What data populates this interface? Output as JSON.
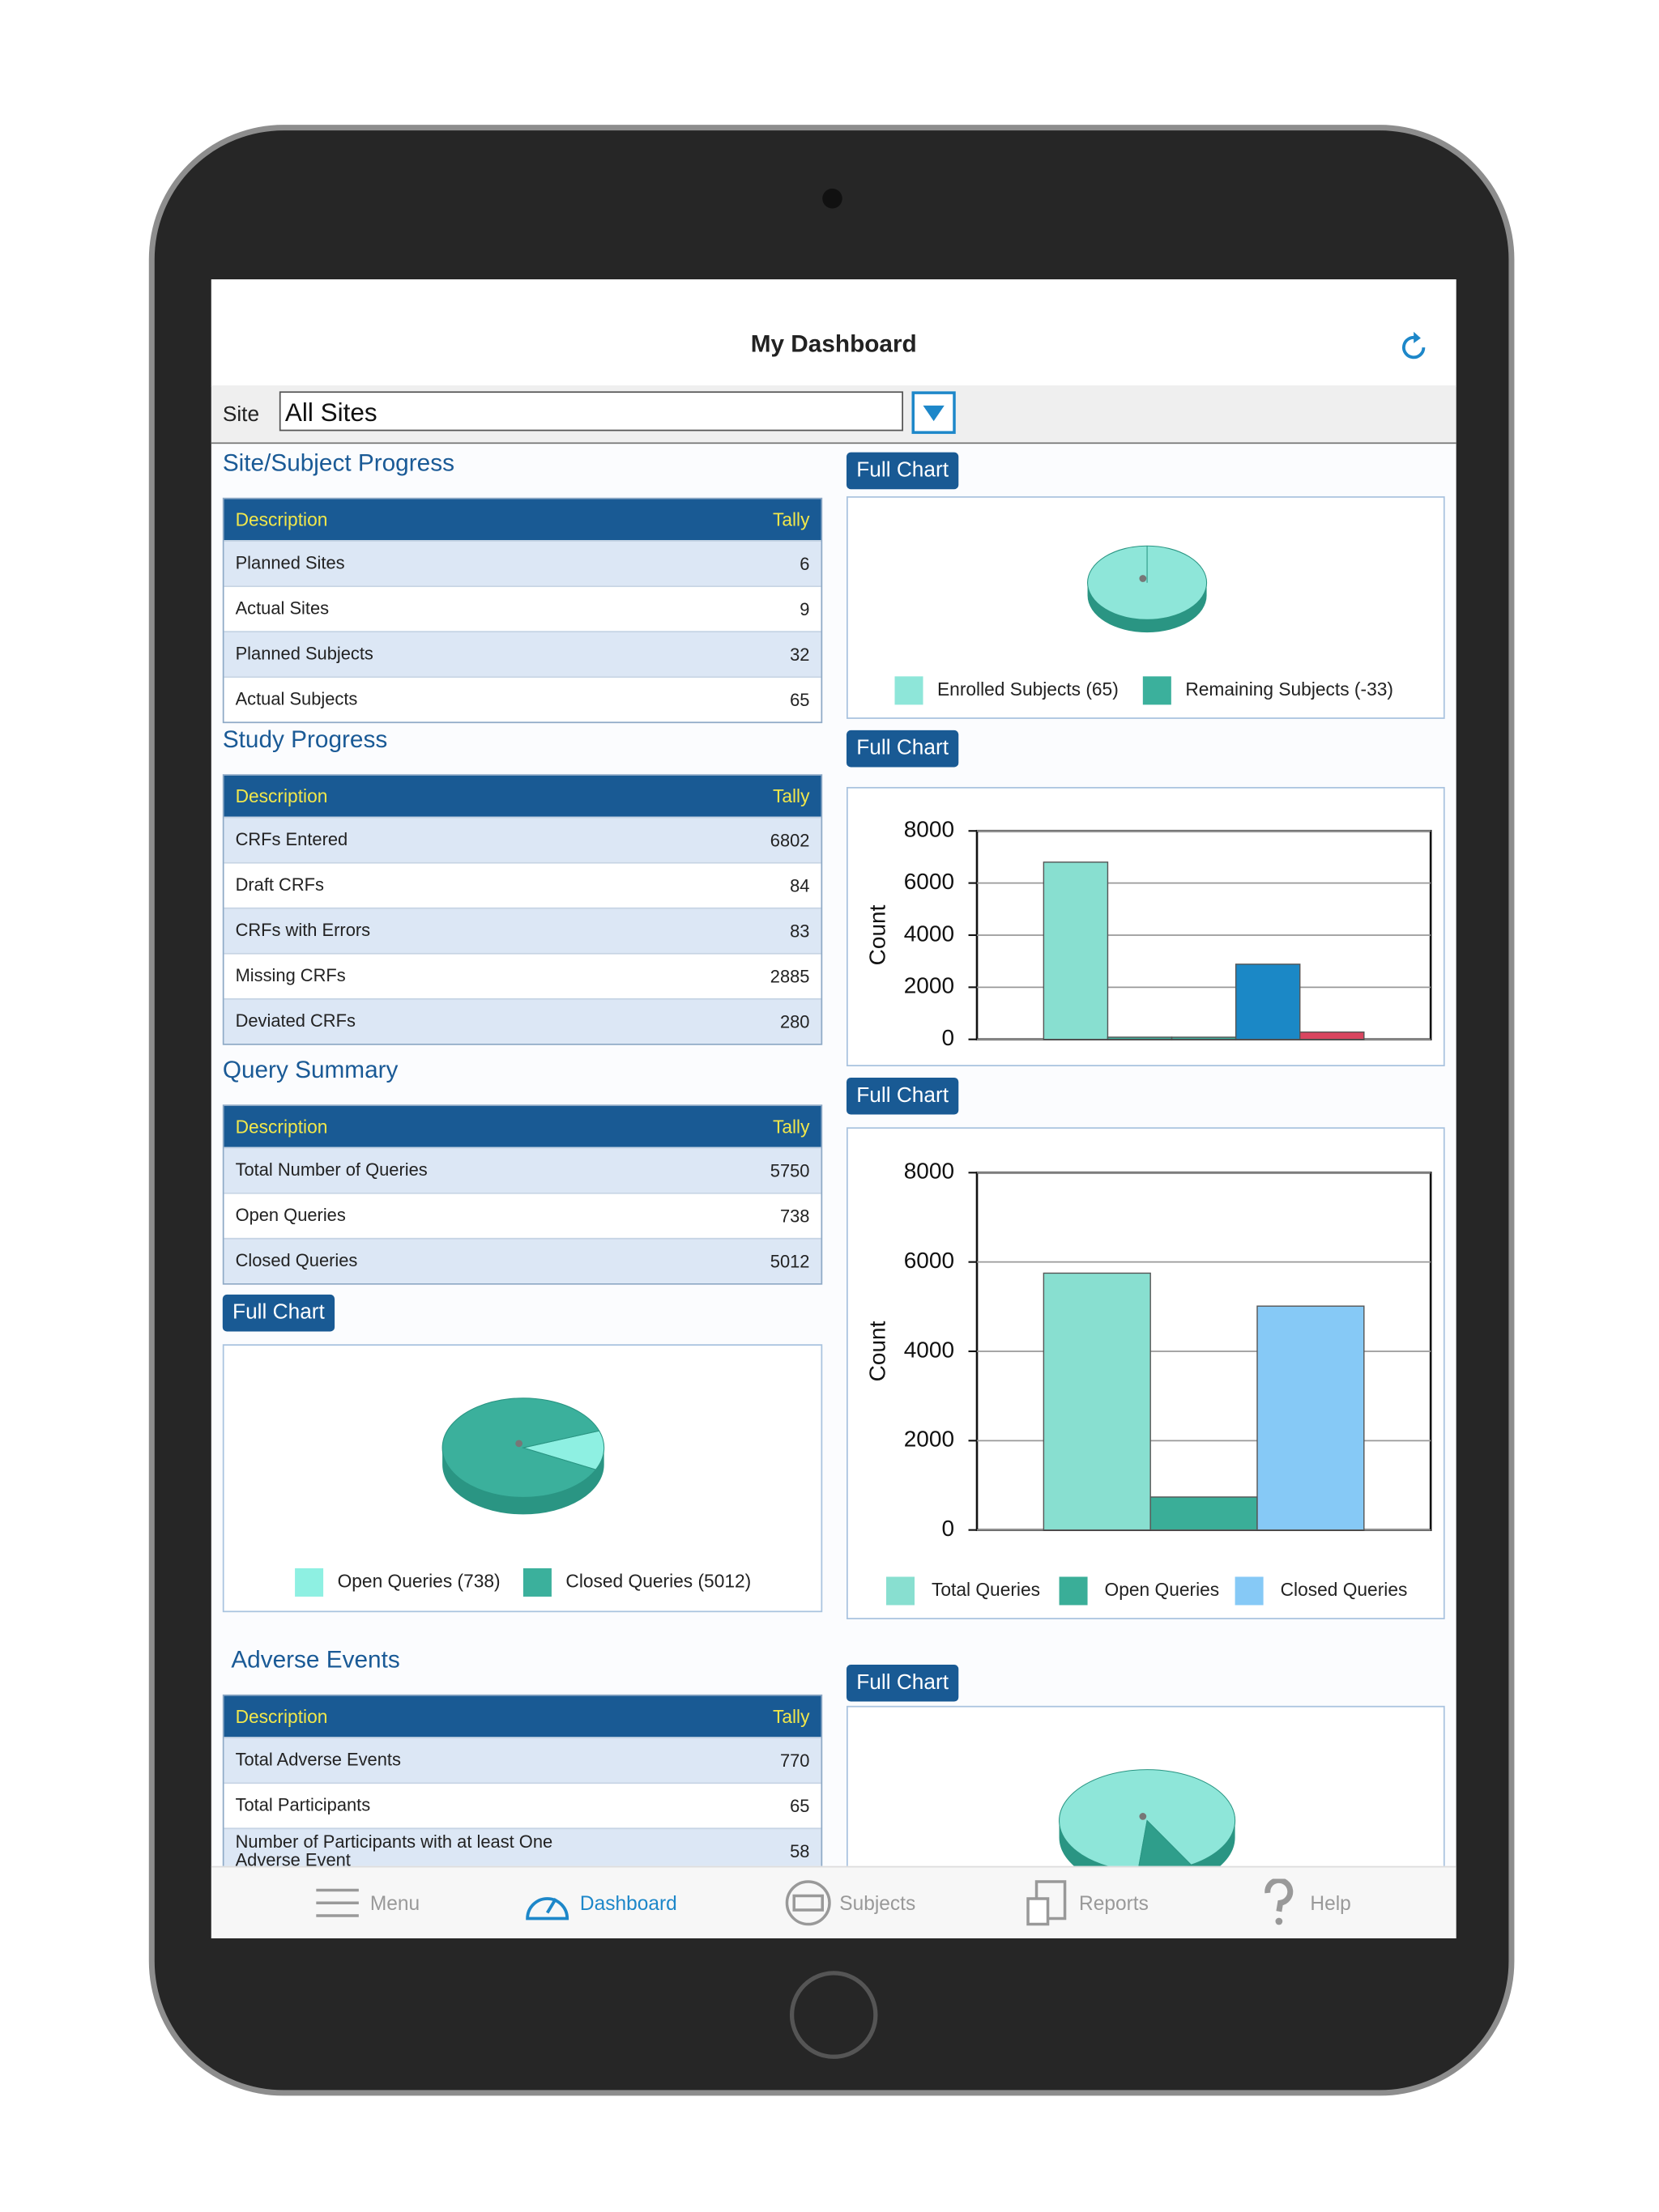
{
  "header": {
    "title": "My Dashboard"
  },
  "site_filter": {
    "label": "Site",
    "value": "All Sites"
  },
  "full_chart_button": "Full Chart",
  "sections": [
    {
      "title": "Site/Subject Progress",
      "columns": [
        "Description",
        "Tally"
      ],
      "rows": [
        [
          "Planned Sites",
          6
        ],
        [
          "Actual Sites",
          9
        ],
        [
          "Planned Subjects",
          32
        ],
        [
          "Actual Subjects",
          65
        ]
      ]
    },
    {
      "title": "Study Progress",
      "columns": [
        "Description",
        "Tally"
      ],
      "rows": [
        [
          "CRFs Entered",
          6802
        ],
        [
          "Draft CRFs",
          84
        ],
        [
          "CRFs with Errors",
          83
        ],
        [
          "Missing CRFs",
          2885
        ],
        [
          "Deviated CRFs",
          280
        ]
      ]
    },
    {
      "title": "Query Summary",
      "columns": [
        "Description",
        "Tally"
      ],
      "rows": [
        [
          "Total Number of Queries",
          5750
        ],
        [
          "Open Queries",
          738
        ],
        [
          "Closed Queries",
          5012
        ]
      ]
    },
    {
      "title": "Adverse Events",
      "columns": [
        "Description",
        "Tally"
      ],
      "rows": [
        [
          "Total Adverse Events",
          770
        ],
        [
          "Total Participants",
          65
        ],
        [
          "Number of Participants with at least One Adverse Event",
          58
        ]
      ]
    }
  ],
  "tabs": [
    "Menu",
    "Dashboard",
    "Subjects",
    "Reports",
    "Help"
  ],
  "chart_data": [
    {
      "type": "pie",
      "categories": [
        "Enrolled Subjects (65)",
        "Remaining Subjects (-33)"
      ],
      "values": [
        65,
        -33
      ],
      "colors": [
        "#8ee6d9",
        "#3bb09c"
      ]
    },
    {
      "type": "bar",
      "y_label": "Count",
      "values": [
        6802,
        84,
        83,
        2885,
        280
      ],
      "colors": [
        "#88dfd0",
        "#3bb09c",
        "#3bb09c",
        "#1b88c6",
        "#d9455f"
      ],
      "ylim": [
        0,
        8000
      ],
      "yticks": [
        0,
        2000,
        4000,
        6000,
        8000
      ],
      "grid": true
    },
    {
      "type": "bar",
      "y_label": "Count",
      "series": [
        {
          "name": "Total Queries",
          "color": "#88dfd0",
          "values": [
            5750
          ]
        },
        {
          "name": "Open Queries",
          "color": "#3aae98",
          "values": [
            738
          ]
        },
        {
          "name": "Closed Queries",
          "color": "#86c9f6",
          "values": [
            5012
          ]
        }
      ],
      "ylim": [
        0,
        8000
      ],
      "yticks": [
        0,
        2000,
        4000,
        6000,
        8000
      ],
      "grid": true
    },
    {
      "type": "pie",
      "categories": [
        "Open Queries (738)",
        "Closed Queries (5012)"
      ],
      "values": [
        738,
        5012
      ],
      "colors": [
        "#8ef0e2",
        "#3bb09c"
      ]
    },
    {
      "type": "pie",
      "values": [
        90,
        10
      ],
      "colors": [
        "#8ee6d9",
        "#2f9e8b"
      ]
    }
  ]
}
